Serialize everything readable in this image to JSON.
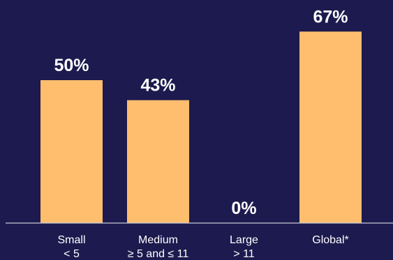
{
  "chart_data": {
    "type": "bar",
    "title": "",
    "xlabel": "",
    "ylabel": "",
    "categories": [
      {
        "name": "Small",
        "range": "< 5"
      },
      {
        "name": "Medium",
        "range": "≥ 5 and ≤ 11"
      },
      {
        "name": "Large",
        "range": "> 11"
      },
      {
        "name": "Global*",
        "range": ""
      }
    ],
    "values": [
      50,
      43,
      0,
      67
    ],
    "value_labels": [
      "50%",
      "43%",
      "0%",
      "67%"
    ],
    "ylim": [
      0,
      100
    ],
    "grid": false,
    "colors": {
      "background": "#1c1a4e",
      "bar": "#ffbe6e",
      "text": "#ffffff",
      "axis": "#c9c9d6"
    }
  }
}
